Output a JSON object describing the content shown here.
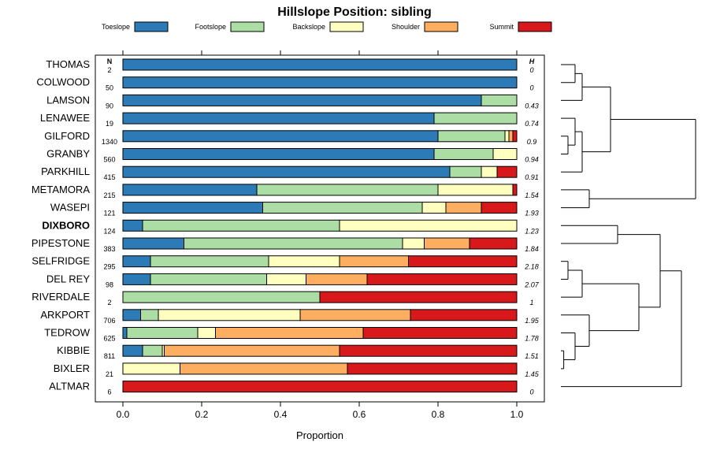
{
  "chart_data": {
    "type": "stacked-bar",
    "orientation": "horizontal",
    "title": "Hillslope Position: sibling",
    "xlabel": "Proportion",
    "ylabel": "",
    "xlim": [
      0,
      1
    ],
    "xticks": [
      "0.0",
      "0.2",
      "0.4",
      "0.6",
      "0.8",
      "1.0"
    ],
    "n_header": "N",
    "h_header": "H",
    "highlight_category": "DIXBORO",
    "legend_placement": "top",
    "series": [
      {
        "name": "Toeslope",
        "color": "#2C7BB6"
      },
      {
        "name": "Footslope",
        "color": "#ABDDA4"
      },
      {
        "name": "Backslope",
        "color": "#FFFFBF"
      },
      {
        "name": "Shoulder",
        "color": "#FDAE61"
      },
      {
        "name": "Summit",
        "color": "#D7191C"
      }
    ],
    "categories": [
      {
        "label": "THOMAS",
        "n": "2",
        "h": "0",
        "values": [
          1.0,
          0,
          0,
          0,
          0
        ]
      },
      {
        "label": "COLWOOD",
        "n": "50",
        "h": "0",
        "values": [
          1.0,
          0,
          0,
          0,
          0
        ]
      },
      {
        "label": "LAMSON",
        "n": "90",
        "h": "0.43",
        "values": [
          0.91,
          0.09,
          0,
          0,
          0
        ]
      },
      {
        "label": "LENAWEE",
        "n": "19",
        "h": "0.74",
        "values": [
          0.79,
          0.21,
          0,
          0,
          0
        ]
      },
      {
        "label": "GILFORD",
        "n": "1340",
        "h": "0.9",
        "values": [
          0.8,
          0.17,
          0.01,
          0.01,
          0.01
        ]
      },
      {
        "label": "GRANBY",
        "n": "560",
        "h": "0.94",
        "values": [
          0.79,
          0.15,
          0.06,
          0,
          0
        ]
      },
      {
        "label": "PARKHILL",
        "n": "415",
        "h": "0.91",
        "values": [
          0.83,
          0.08,
          0.04,
          0,
          0.05
        ]
      },
      {
        "label": "METAMORA",
        "n": "215",
        "h": "1.54",
        "values": [
          0.34,
          0.46,
          0.19,
          0,
          0.01
        ]
      },
      {
        "label": "WASEPI",
        "n": "121",
        "h": "1.93",
        "values": [
          0.355,
          0.405,
          0.06,
          0.09,
          0.09
        ]
      },
      {
        "label": "DIXBORO",
        "n": "124",
        "h": "1.23",
        "values": [
          0.05,
          0.5,
          0.45,
          0,
          0
        ]
      },
      {
        "label": "PIPESTONE",
        "n": "383",
        "h": "1.84",
        "values": [
          0.155,
          0.555,
          0.055,
          0.115,
          0.12
        ]
      },
      {
        "label": "SELFRIDGE",
        "n": "295",
        "h": "2.18",
        "values": [
          0.07,
          0.3,
          0.18,
          0.175,
          0.275
        ]
      },
      {
        "label": "DEL REY",
        "n": "98",
        "h": "2.07",
        "values": [
          0.07,
          0.295,
          0.1,
          0.155,
          0.38
        ]
      },
      {
        "label": "RIVERDALE",
        "n": "2",
        "h": "1",
        "values": [
          0,
          0.5,
          0,
          0,
          0.5
        ]
      },
      {
        "label": "ARKPORT",
        "n": "706",
        "h": "1.95",
        "values": [
          0.045,
          0.045,
          0.36,
          0.28,
          0.27
        ]
      },
      {
        "label": "TEDROW",
        "n": "625",
        "h": "1.78",
        "values": [
          0.01,
          0.18,
          0.045,
          0.375,
          0.39
        ]
      },
      {
        "label": "KIBBIE",
        "n": "811",
        "h": "1.51",
        "values": [
          0.05,
          0.05,
          0.005,
          0.445,
          0.45
        ]
      },
      {
        "label": "BIXLER",
        "n": "21",
        "h": "1.45",
        "values": [
          0,
          0,
          0.145,
          0.425,
          0.43
        ]
      },
      {
        "label": "ALTMAR",
        "n": "6",
        "h": "0",
        "values": [
          0,
          0,
          0,
          0,
          1.0
        ]
      }
    ],
    "dendrogram": {
      "note": "hierarchical clustering tree drawn to the right; leaves in the same order as categories; merge heights in relative units (0 = leaves, 1 = root)",
      "merges": [
        [
          0,
          1,
          0.1
        ],
        [
          2,
          -1,
          0.15
        ],
        [
          4,
          5,
          0.05
        ],
        [
          3,
          -3,
          0.1
        ],
        [
          -4,
          6,
          0.15
        ],
        [
          -2,
          -5,
          0.35
        ],
        [
          7,
          8,
          0.2
        ],
        [
          -6,
          -7,
          0.95
        ],
        [
          9,
          10,
          0.4
        ],
        [
          11,
          12,
          0.05
        ],
        [
          -10,
          13,
          0.15
        ],
        [
          16,
          17,
          0.02
        ],
        [
          15,
          -12,
          0.1
        ],
        [
          14,
          -13,
          0.2
        ],
        [
          -11,
          -14,
          0.55
        ],
        [
          -9,
          -15,
          0.7
        ],
        [
          -16,
          18,
          0.85
        ]
      ]
    }
  }
}
